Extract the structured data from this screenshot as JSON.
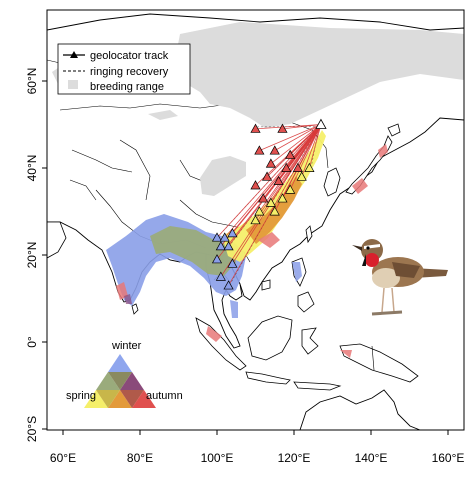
{
  "axes": {
    "y_ticks": [
      {
        "label": "60°N",
        "lat": 60
      },
      {
        "label": "40°N",
        "lat": 40
      },
      {
        "label": "20°N",
        "lat": 20
      },
      {
        "label": "0°",
        "lat": 0
      },
      {
        "label": "20°S",
        "lat": -20
      }
    ],
    "x_ticks": [
      {
        "label": "60°E",
        "lon": 60
      },
      {
        "label": "80°E",
        "lon": 80
      },
      {
        "label": "100°E",
        "lon": 100
      },
      {
        "label": "120°E",
        "lon": 120
      },
      {
        "label": "140°E",
        "lon": 140
      },
      {
        "label": "160°E",
        "lon": 160
      }
    ]
  },
  "legend": {
    "geolocator": "geolocator track",
    "ringing": "ringing recovery",
    "breeding": "breeding range"
  },
  "season_key": {
    "winter": "winter",
    "spring": "spring",
    "autumn": "autumn"
  },
  "colors": {
    "breeding": "#dcdcdc",
    "winter": "#8a9ee8",
    "spring": "#f5ef6a",
    "autumn": "#e0504e",
    "overlap_winter_spring": "#9aab7c",
    "overlap_spring_autumn": "#e39a3a",
    "overlap_winter_autumn": "#8a4a7a",
    "track_line": "#d83a3a"
  },
  "breeding_site": {
    "lon": 127,
    "lat": 50
  },
  "tracks": [
    {
      "season": "autumn",
      "lon": 110,
      "lat": 49
    },
    {
      "season": "autumn",
      "lon": 117,
      "lat": 49
    },
    {
      "season": "autumn",
      "lon": 111,
      "lat": 44
    },
    {
      "season": "autumn",
      "lon": 115,
      "lat": 44
    },
    {
      "season": "autumn",
      "lon": 119,
      "lat": 43
    },
    {
      "season": "autumn",
      "lon": 114,
      "lat": 41
    },
    {
      "season": "autumn",
      "lon": 118,
      "lat": 40
    },
    {
      "season": "autumn",
      "lon": 121,
      "lat": 40
    },
    {
      "season": "autumn",
      "lon": 113,
      "lat": 38
    },
    {
      "season": "autumn",
      "lon": 116,
      "lat": 37
    },
    {
      "season": "autumn",
      "lon": 110,
      "lat": 36
    },
    {
      "season": "autumn",
      "lon": 112,
      "lat": 33
    },
    {
      "season": "spring",
      "lon": 124,
      "lat": 40
    },
    {
      "season": "spring",
      "lon": 122,
      "lat": 38
    },
    {
      "season": "spring",
      "lon": 119,
      "lat": 35
    },
    {
      "season": "spring",
      "lon": 117,
      "lat": 33
    },
    {
      "season": "spring",
      "lon": 114,
      "lat": 32
    },
    {
      "season": "spring",
      "lon": 115,
      "lat": 30
    },
    {
      "season": "spring",
      "lon": 111,
      "lat": 30
    },
    {
      "season": "spring",
      "lon": 110,
      "lat": 28
    },
    {
      "season": "winter",
      "lon": 100,
      "lat": 24
    },
    {
      "season": "winter",
      "lon": 102,
      "lat": 24
    },
    {
      "season": "winter",
      "lon": 104,
      "lat": 25
    },
    {
      "season": "winter",
      "lon": 101,
      "lat": 22
    },
    {
      "season": "winter",
      "lon": 103,
      "lat": 22
    },
    {
      "season": "winter",
      "lon": 100,
      "lat": 19
    },
    {
      "season": "winter",
      "lon": 104,
      "lat": 18
    },
    {
      "season": "winter",
      "lon": 101,
      "lat": 15
    },
    {
      "season": "winter",
      "lon": 103,
      "lat": 13
    }
  ]
}
